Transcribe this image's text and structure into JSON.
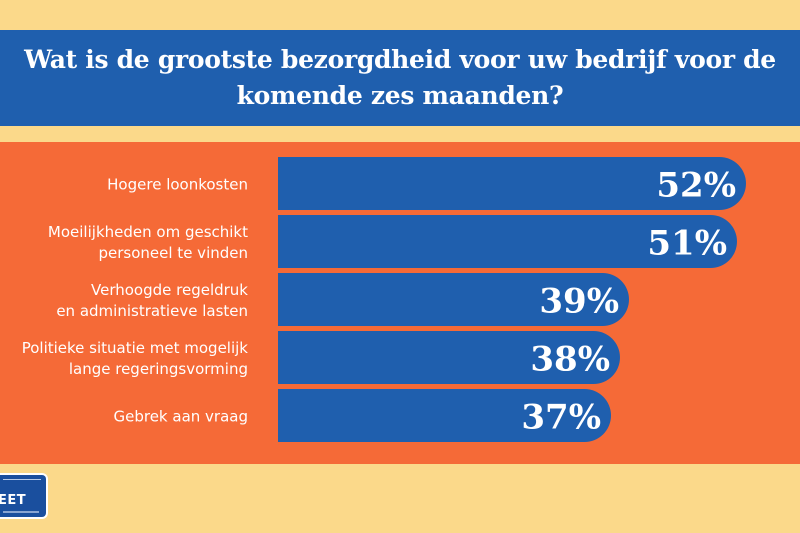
{
  "title": "Wat is de grootste bezorgdheid voor uw bedrijf voor de komende zes maanden?",
  "colors": {
    "background": "#fbd98a",
    "banner": "#1f5fae",
    "panel": "#f56a37",
    "bar": "#1f5fae",
    "label_text": "#ffffff",
    "value_text": "#ffffff"
  },
  "chart_data": {
    "type": "bar",
    "orientation": "horizontal",
    "categories": [
      "Hogere loonkosten",
      "Moeilijkheden om geschikt personeel te vinden",
      "Verhoogde regeldruk en administratieve lasten",
      "Politieke situatie met mogelijk lange regeringsvorming",
      "Gebrek aan vraag"
    ],
    "category_lines": [
      [
        "Hogere loonkosten"
      ],
      [
        "Moeilijkheden om geschikt",
        "personeel te vinden"
      ],
      [
        "Verhoogde regeldruk",
        "en administratieve lasten"
      ],
      [
        "Politieke situatie met mogelijk",
        "lange regeringsvorming"
      ],
      [
        "Gebrek aan vraag"
      ]
    ],
    "values": [
      52,
      51,
      39,
      38,
      37
    ],
    "value_labels": [
      "52%",
      "51%",
      "39%",
      "38%",
      "37%"
    ],
    "unit": "%",
    "grid": false,
    "legend": "none"
  },
  "logo": {
    "word": "EET",
    "icon": "logo-badge-icon"
  }
}
